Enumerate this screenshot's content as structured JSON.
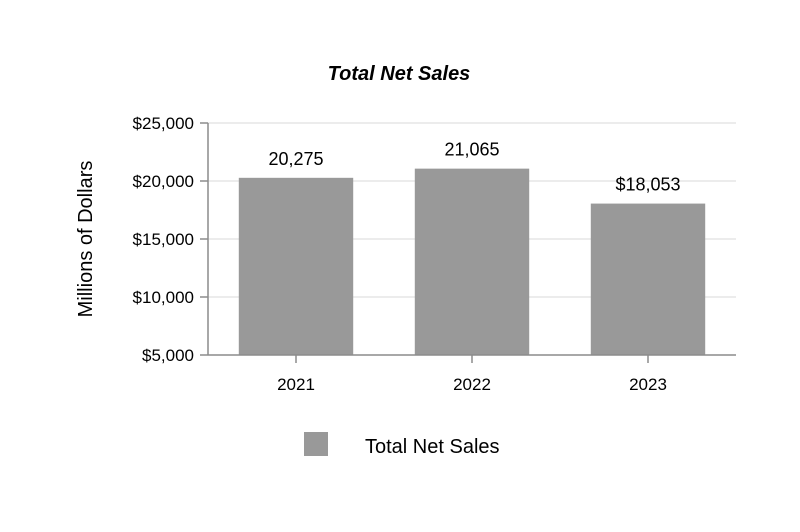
{
  "chart_data": {
    "type": "bar",
    "title": "Total Net Sales",
    "xlabel": "",
    "ylabel": "Millions of Dollars",
    "categories": [
      "2021",
      "2022",
      "2023"
    ],
    "series": [
      {
        "name": "Total Net Sales",
        "values": [
          20275,
          21065,
          18053
        ],
        "color": "#999999"
      }
    ],
    "data_labels": [
      "20,275",
      "21,065",
      "$18,053"
    ],
    "ylim": [
      5000,
      25000
    ],
    "yticks": [
      5000,
      10000,
      15000,
      20000,
      25000
    ],
    "ytick_labels": [
      "$5,000",
      "$10,000",
      "$15,000",
      "$20,000",
      "$25,000"
    ],
    "grid": true,
    "legend": {
      "position": "bottom",
      "entries": [
        "Total Net Sales"
      ]
    }
  }
}
